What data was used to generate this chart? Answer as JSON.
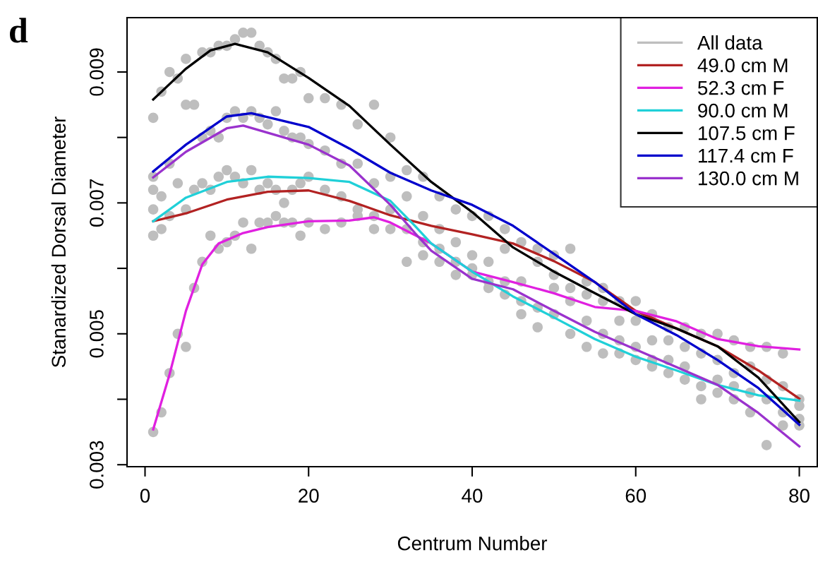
{
  "chart_data": {
    "type": "line",
    "title": "d",
    "xlabel": "Centrum Number",
    "ylabel": "Stanardized Dorsal Diameter",
    "xlim": [
      -2.2,
      82.2
    ],
    "ylim": [
      0.00297,
      0.00983
    ],
    "xticks": [
      0,
      20,
      40,
      60,
      80
    ],
    "yticks": [
      {
        "value": 0.003,
        "label": "0.003"
      },
      {
        "value": 0.004,
        "label": null
      },
      {
        "value": 0.005,
        "label": "0.005"
      },
      {
        "value": 0.006,
        "label": null
      },
      {
        "value": 0.007,
        "label": "0.007"
      },
      {
        "value": 0.008,
        "label": null
      },
      {
        "value": 0.009,
        "label": "0.009"
      }
    ],
    "legend": "top right",
    "grid": false,
    "series": [
      {
        "name": "All data",
        "type": "scatter",
        "marker": "circle",
        "color": "#bebebe",
        "x": [
          1,
          1,
          1,
          1,
          1,
          1,
          2,
          2,
          2,
          2,
          3,
          3,
          3,
          3,
          4,
          4,
          4,
          5,
          5,
          5,
          5,
          6,
          6,
          6,
          7,
          7,
          7,
          7,
          8,
          8,
          8,
          8,
          9,
          9,
          9,
          9,
          10,
          10,
          10,
          10,
          11,
          11,
          11,
          11,
          12,
          12,
          12,
          12,
          13,
          13,
          13,
          13,
          14,
          14,
          14,
          14,
          15,
          15,
          15,
          15,
          16,
          16,
          16,
          16,
          17,
          17,
          17,
          17,
          18,
          18,
          18,
          18,
          19,
          19,
          19,
          19,
          20,
          20,
          20,
          20,
          22,
          22,
          22,
          22,
          24,
          24,
          24,
          24,
          26,
          26,
          26,
          26,
          28,
          28,
          28,
          28,
          30,
          30,
          30,
          30,
          32,
          32,
          32,
          32,
          34,
          34,
          34,
          34,
          36,
          36,
          36,
          36,
          38,
          38,
          38,
          38,
          40,
          40,
          40,
          40,
          42,
          42,
          42,
          42,
          44,
          44,
          44,
          44,
          46,
          46,
          46,
          46,
          48,
          48,
          48,
          48,
          50,
          50,
          50,
          50,
          52,
          52,
          52,
          52,
          54,
          54,
          54,
          54,
          56,
          56,
          56,
          56,
          58,
          58,
          58,
          58,
          60,
          60,
          60,
          60,
          62,
          62,
          62,
          62,
          64,
          64,
          64,
          64,
          66,
          66,
          66,
          66,
          68,
          68,
          68,
          68,
          70,
          70,
          70,
          70,
          72,
          72,
          72,
          72,
          74,
          74,
          74,
          74,
          76,
          76,
          76,
          76,
          78,
          78,
          78,
          78,
          80,
          80,
          80,
          80
        ],
        "values": [
          0.0083,
          0.0074,
          0.0072,
          0.0069,
          0.0065,
          0.0035,
          0.0087,
          0.0071,
          0.0066,
          0.0038,
          0.009,
          0.0076,
          0.0068,
          0.0044,
          0.0089,
          0.0073,
          0.005,
          0.0092,
          0.0085,
          0.0069,
          0.0048,
          0.0085,
          0.0072,
          0.0057,
          0.0093,
          0.008,
          0.0073,
          0.0061,
          0.0093,
          0.0081,
          0.0072,
          0.0065,
          0.0094,
          0.008,
          0.0074,
          0.0063,
          0.0094,
          0.0083,
          0.0075,
          0.0064,
          0.0095,
          0.0084,
          0.0074,
          0.0065,
          0.0096,
          0.0083,
          0.0073,
          0.0067,
          0.0096,
          0.0084,
          0.0075,
          0.0063,
          0.0094,
          0.0083,
          0.0072,
          0.0067,
          0.0093,
          0.0082,
          0.0073,
          0.0067,
          0.0092,
          0.0084,
          0.0072,
          0.0068,
          0.0089,
          0.0081,
          0.007,
          0.0067,
          0.0089,
          0.008,
          0.0072,
          0.0067,
          0.009,
          0.008,
          0.0073,
          0.0065,
          0.0086,
          0.0079,
          0.0074,
          0.0067,
          0.0086,
          0.0078,
          0.0072,
          0.0066,
          0.0085,
          0.0076,
          0.0071,
          0.0067,
          0.0082,
          0.0076,
          0.0069,
          0.0068,
          0.0085,
          0.0073,
          0.0068,
          0.0066,
          0.008,
          0.0074,
          0.0069,
          0.0066,
          0.0075,
          0.0071,
          0.0066,
          0.0061,
          0.0074,
          0.0068,
          0.0064,
          0.0062,
          0.0071,
          0.0066,
          0.0063,
          0.0061,
          0.0069,
          0.0064,
          0.0061,
          0.0059,
          0.0068,
          0.0062,
          0.006,
          0.0059,
          0.0068,
          0.0061,
          0.0058,
          0.0057,
          0.0063,
          0.0066,
          0.0058,
          0.0056,
          0.0064,
          0.0058,
          0.0055,
          0.0053,
          0.0063,
          0.0061,
          0.0054,
          0.0051,
          0.0062,
          0.0059,
          0.0057,
          0.0053,
          0.0063,
          0.0057,
          0.0055,
          0.005,
          0.0058,
          0.0056,
          0.0052,
          0.0048,
          0.0057,
          0.0055,
          0.005,
          0.0047,
          0.0055,
          0.0052,
          0.0049,
          0.0047,
          0.0055,
          0.0052,
          0.0048,
          0.0046,
          0.0053,
          0.0049,
          0.0046,
          0.0045,
          0.0051,
          0.0049,
          0.0046,
          0.0044,
          0.0051,
          0.0048,
          0.0045,
          0.0043,
          0.005,
          0.0047,
          0.004,
          0.0042,
          0.005,
          0.0046,
          0.0043,
          0.0041,
          0.0049,
          0.0044,
          0.0042,
          0.004,
          0.0048,
          0.0045,
          0.0041,
          0.0038,
          0.0048,
          0.0043,
          0.004,
          0.0033,
          0.0047,
          0.0042,
          0.0038,
          0.0036,
          0.004,
          0.0039,
          0.0037,
          0.0036
        ]
      },
      {
        "name": "49.0 cm M",
        "color": "#b22222",
        "x": [
          1,
          5,
          10,
          15,
          20,
          25,
          30,
          35,
          40,
          45,
          50,
          55,
          60,
          65,
          70,
          75,
          80
        ],
        "values": [
          0.00672,
          0.00684,
          0.00705,
          0.00717,
          0.00719,
          0.00703,
          0.00681,
          0.00665,
          0.00652,
          0.00638,
          0.00611,
          0.00579,
          0.00535,
          0.00508,
          0.00481,
          0.00444,
          0.00401
        ]
      },
      {
        "name": "52.3 cm F",
        "color": "#e020e0",
        "x": [
          1,
          3,
          5,
          7,
          9,
          12,
          15,
          20,
          25,
          28,
          30,
          35,
          40,
          45,
          50,
          55,
          60,
          65,
          70,
          75,
          80
        ],
        "values": [
          0.00354,
          0.00438,
          0.00535,
          0.00606,
          0.00638,
          0.00654,
          0.00663,
          0.00672,
          0.00673,
          0.00678,
          0.0067,
          0.00638,
          0.00595,
          0.00579,
          0.00562,
          0.00541,
          0.00535,
          0.00519,
          0.00492,
          0.00481,
          0.00476
        ]
      },
      {
        "name": "90.0 cm M",
        "color": "#20d0d8",
        "x": [
          1,
          5,
          10,
          15,
          20,
          25,
          30,
          33,
          35,
          40,
          45,
          50,
          55,
          60,
          65,
          70,
          75,
          80
        ],
        "values": [
          0.00672,
          0.00708,
          0.00732,
          0.0074,
          0.00738,
          0.00732,
          0.00703,
          0.00665,
          0.00638,
          0.00595,
          0.00557,
          0.00525,
          0.00492,
          0.00465,
          0.00444,
          0.00422,
          0.00406,
          0.00398
        ]
      },
      {
        "name": "107.5 cm F",
        "color": "#000000",
        "x": [
          1,
          5,
          8,
          11,
          15,
          20,
          25,
          30,
          35,
          40,
          45,
          50,
          55,
          60,
          65,
          70,
          75,
          80
        ],
        "values": [
          0.00858,
          0.00905,
          0.00933,
          0.00943,
          0.0093,
          0.00891,
          0.00848,
          0.00789,
          0.00732,
          0.00686,
          0.00632,
          0.00595,
          0.00562,
          0.0053,
          0.00508,
          0.00481,
          0.00433,
          0.00365
        ]
      },
      {
        "name": "117.4 cm F",
        "color": "#0000cc",
        "x": [
          1,
          5,
          10,
          13,
          20,
          25,
          30,
          35,
          40,
          45,
          50,
          55,
          60,
          65,
          70,
          75,
          80
        ],
        "values": [
          0.00748,
          0.00789,
          0.00832,
          0.00837,
          0.00816,
          0.00783,
          0.00746,
          0.00719,
          0.00697,
          0.00665,
          0.00622,
          0.00579,
          0.0053,
          0.00498,
          0.0046,
          0.00417,
          0.00361
        ]
      },
      {
        "name": "130.0 cm M",
        "color": "#9a32cd",
        "x": [
          1,
          5,
          10,
          12,
          20,
          25,
          30,
          33,
          35,
          40,
          45,
          50,
          55,
          60,
          65,
          70,
          75,
          80
        ],
        "values": [
          0.00739,
          0.00778,
          0.00814,
          0.00818,
          0.00789,
          0.00757,
          0.00697,
          0.00654,
          0.00627,
          0.00584,
          0.00568,
          0.00535,
          0.00503,
          0.00476,
          0.00449,
          0.00422,
          0.00379,
          0.00328
        ]
      }
    ]
  }
}
